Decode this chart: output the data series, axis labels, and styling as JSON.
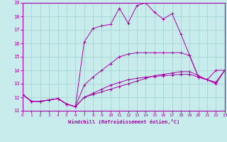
{
  "xlabel": "Windchill (Refroidissement éolien,°C)",
  "xlim": [
    0,
    23
  ],
  "ylim": [
    11,
    19
  ],
  "xticks": [
    0,
    1,
    2,
    3,
    4,
    5,
    6,
    7,
    8,
    9,
    10,
    11,
    12,
    13,
    14,
    15,
    16,
    17,
    18,
    19,
    20,
    21,
    22,
    23
  ],
  "yticks": [
    11,
    12,
    13,
    14,
    15,
    16,
    17,
    18,
    19
  ],
  "background_color": "#c8ecec",
  "grid_color": "#9ecece",
  "line_color": "#aa00aa",
  "line3_x": [
    0,
    1,
    2,
    3,
    4,
    5,
    6,
    7,
    8,
    9,
    10,
    11,
    12,
    13,
    14,
    15,
    16,
    17,
    18,
    19,
    20,
    21,
    22,
    23
  ],
  "line3_y": [
    12.2,
    11.7,
    11.7,
    11.8,
    11.9,
    11.5,
    11.3,
    16.1,
    17.1,
    17.3,
    17.4,
    18.6,
    17.5,
    18.8,
    19.0,
    18.3,
    17.8,
    18.2,
    16.7,
    15.1,
    13.5,
    13.3,
    14.0,
    14.0
  ],
  "line4_x": [
    0,
    1,
    2,
    3,
    4,
    5,
    6,
    7,
    8,
    9,
    10,
    11,
    12,
    13,
    14,
    15,
    16,
    17,
    18,
    19,
    20,
    21,
    22,
    23
  ],
  "line4_y": [
    12.2,
    11.7,
    11.7,
    11.8,
    11.9,
    11.5,
    11.3,
    12.9,
    13.5,
    14.0,
    14.5,
    15.0,
    15.2,
    15.3,
    15.3,
    15.3,
    15.3,
    15.3,
    15.3,
    15.1,
    13.5,
    13.3,
    13.0,
    14.0
  ],
  "line1_x": [
    0,
    1,
    2,
    3,
    4,
    5,
    6,
    7,
    8,
    9,
    10,
    11,
    12,
    13,
    14,
    15,
    16,
    17,
    18,
    19,
    20,
    21,
    22,
    23
  ],
  "line1_y": [
    12.2,
    11.7,
    11.7,
    11.8,
    11.9,
    11.5,
    11.3,
    12.0,
    12.2,
    12.4,
    12.6,
    12.8,
    13.0,
    13.2,
    13.4,
    13.6,
    13.7,
    13.8,
    13.9,
    13.9,
    13.6,
    13.3,
    13.1,
    14.0
  ],
  "line2_x": [
    0,
    1,
    2,
    3,
    4,
    5,
    6,
    7,
    8,
    9,
    10,
    11,
    12,
    13,
    14,
    15,
    16,
    17,
    18,
    19,
    20,
    21,
    22,
    23
  ],
  "line2_y": [
    12.2,
    11.7,
    11.7,
    11.8,
    11.9,
    11.5,
    11.3,
    12.0,
    12.3,
    12.6,
    12.9,
    13.1,
    13.3,
    13.4,
    13.5,
    13.55,
    13.6,
    13.65,
    13.7,
    13.7,
    13.5,
    13.3,
    13.1,
    14.0
  ]
}
